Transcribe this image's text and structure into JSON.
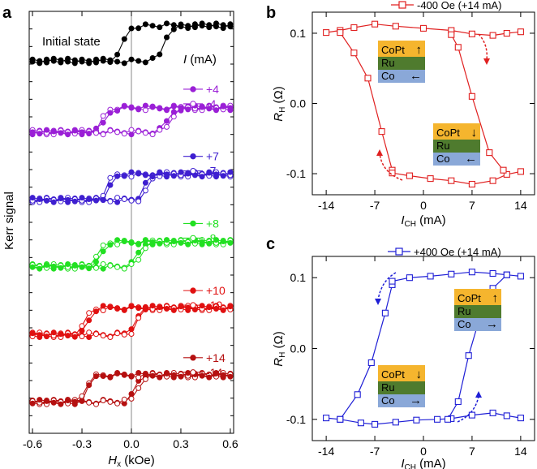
{
  "chart_data": [
    {
      "panel": "a",
      "type": "line",
      "xlabel_main": "H",
      "xlabel_sub": "x",
      "xlabel_unit": " (kOe)",
      "ylabel": "Kerr signal",
      "xlim": [
        -0.62,
        0.62
      ],
      "xticks": [
        -0.6,
        -0.3,
        0.0,
        0.3,
        0.6
      ],
      "xtick_labels": [
        "-0.6",
        "-0.3",
        "0.0",
        "0.3",
        "0.6"
      ],
      "initial_label": "Initial state",
      "current_label_sym": "I",
      "current_label_unit": " (mA)",
      "loops": [
        {
          "name": "Initial state",
          "color": "#000000",
          "level": 0.5,
          "amp": 0.55,
          "hc_up": 0.2,
          "hc_down": -0.05,
          "w": 0.035,
          "curve": "initial",
          "legend": []
        },
        {
          "name": "±4",
          "color": "#9a1fd6",
          "level": 1.7,
          "amp": 0.38,
          "hc_up": 0.22,
          "hc_down": -0.18,
          "w": 0.04,
          "legend": [
            {
              "label": "+4",
              "filled": true
            },
            {
              "label": "-4",
              "filled": false
            }
          ]
        },
        {
          "name": "±7",
          "color": "#3e1fd0",
          "level": 2.75,
          "amp": 0.4,
          "hc_up": 0.08,
          "hc_down": -0.15,
          "w": 0.035,
          "legend": [
            {
              "label": "+7",
              "filled": true
            },
            {
              "label": "-7",
              "filled": false
            }
          ]
        },
        {
          "name": "±8",
          "color": "#22e022",
          "level": 3.8,
          "amp": 0.38,
          "hc_up": 0.04,
          "hc_down": -0.2,
          "w": 0.035,
          "legend": [
            {
              "label": "+8",
              "filled": true
            },
            {
              "label": "-8",
              "filled": false
            }
          ]
        },
        {
          "name": "±10",
          "color": "#e01010",
          "level": 4.85,
          "amp": 0.42,
          "hc_up": 0.02,
          "hc_down": -0.28,
          "w": 0.035,
          "legend": [
            {
              "label": "+10",
              "filled": true
            },
            {
              "label": "-10",
              "filled": false
            }
          ]
        },
        {
          "name": "±14",
          "color": "#b51010",
          "level": 5.9,
          "amp": 0.42,
          "hc_up": 0.02,
          "hc_down": -0.28,
          "w": 0.035,
          "legend": [
            {
              "label": "+14",
              "filled": true
            },
            {
              "label": "-14",
              "filled": false
            }
          ]
        }
      ]
    },
    {
      "panel": "b",
      "type": "line",
      "color": "#e02020",
      "legend": "-400 Oe (+14 mA)",
      "xlabel_main": "I",
      "xlabel_sub": "CH",
      "xlabel_unit": " (mA)",
      "ylabel_main": "R",
      "ylabel_sub": "H",
      "ylabel_unit": " (Ω)",
      "xlim": [
        -16,
        16
      ],
      "ylim": [
        -0.13,
        0.13
      ],
      "xticks": [
        -14,
        -7,
        0,
        7,
        14
      ],
      "xtick_labels": [
        "-14",
        "-7",
        "0",
        "7",
        "14"
      ],
      "yticks": [
        0.1,
        0.0,
        -0.1
      ],
      "ytick_labels": [
        "0.1",
        "0.0",
        "-0.1"
      ],
      "upper_branch": {
        "x": [
          14,
          12,
          10,
          7,
          4,
          0,
          -4,
          -7,
          -10,
          -12,
          -14
        ],
        "y": [
          0.102,
          0.1,
          0.097,
          0.099,
          0.104,
          0.107,
          0.11,
          0.113,
          0.108,
          0.104,
          0.101
        ]
      },
      "transition_down": {
        "x": [
          -12,
          -10,
          -8,
          -6,
          -4.5
        ],
        "y": [
          0.101,
          0.072,
          0.036,
          -0.04,
          -0.095
        ]
      },
      "lower_branch": {
        "x": [
          -4.5,
          -2,
          1,
          4,
          7,
          10,
          12,
          14
        ],
        "y": [
          -0.099,
          -0.103,
          -0.107,
          -0.11,
          -0.115,
          -0.11,
          -0.101,
          -0.097
        ]
      },
      "transition_up": {
        "x": [
          4,
          5,
          7,
          9.5,
          11.5
        ],
        "y": [
          0.098,
          0.08,
          0.01,
          -0.07,
          -0.095
        ]
      },
      "stack_top": {
        "layers": [
          "CoPt",
          "Ru",
          "Co"
        ],
        "arrows": [
          "↑",
          "",
          "←"
        ]
      },
      "stack_bottom": {
        "layers": [
          "CoPt",
          "Ru",
          "Co"
        ],
        "arrows": [
          "↓",
          "",
          "←"
        ]
      }
    },
    {
      "panel": "c",
      "type": "line",
      "color": "#1f1fd6",
      "legend": "+400 Oe (+14 mA)",
      "xlabel_main": "I",
      "xlabel_sub": "CH",
      "xlabel_unit": " (mA)",
      "ylabel_main": "R",
      "ylabel_sub": "H",
      "ylabel_unit": " (Ω)",
      "xlim": [
        -16,
        16
      ],
      "ylim": [
        -0.13,
        0.13
      ],
      "xticks": [
        -14,
        -7,
        0,
        7,
        14
      ],
      "xtick_labels": [
        "-14",
        "-7",
        "0",
        "7",
        "14"
      ],
      "yticks": [
        0.1,
        0.0,
        -0.1
      ],
      "ytick_labels": [
        "0.1",
        "0.0",
        "-0.1"
      ],
      "lower_branch": {
        "x": [
          -14,
          -12,
          -9,
          -7,
          -4,
          -1,
          2,
          4,
          7,
          10,
          12,
          14
        ],
        "y": [
          -0.098,
          -0.1,
          -0.105,
          -0.107,
          -0.104,
          -0.101,
          -0.1,
          -0.099,
          -0.094,
          -0.091,
          -0.095,
          -0.098
        ]
      },
      "transition_up_left": {
        "x": [
          -12,
          -9.5,
          -7.5,
          -5.5,
          -4.5
        ],
        "y": [
          -0.1,
          -0.065,
          -0.02,
          0.05,
          0.09
        ]
      },
      "upper_branch": {
        "x": [
          -4.5,
          -2,
          1,
          4,
          7,
          10,
          12,
          14
        ],
        "y": [
          0.095,
          0.1,
          0.102,
          0.105,
          0.108,
          0.106,
          0.104,
          0.102
        ]
      },
      "transition_down_right": {
        "x": [
          3.5,
          5,
          6.5,
          8,
          10,
          12
        ],
        "y": [
          -0.1,
          -0.075,
          -0.01,
          0.04,
          0.085,
          0.104
        ]
      },
      "stack_top": {
        "layers": [
          "CoPt",
          "Ru",
          "Co"
        ],
        "arrows": [
          "↑",
          "",
          "→"
        ]
      },
      "stack_bottom": {
        "layers": [
          "CoPt",
          "Ru",
          "Co"
        ],
        "arrows": [
          "↓",
          "",
          "→"
        ]
      }
    }
  ],
  "panel_labels": {
    "a": "a",
    "b": "b",
    "c": "c"
  },
  "colors": {
    "copt": "#f5b52e",
    "ru": "#4f7b2e",
    "co": "#8aa8d8"
  }
}
